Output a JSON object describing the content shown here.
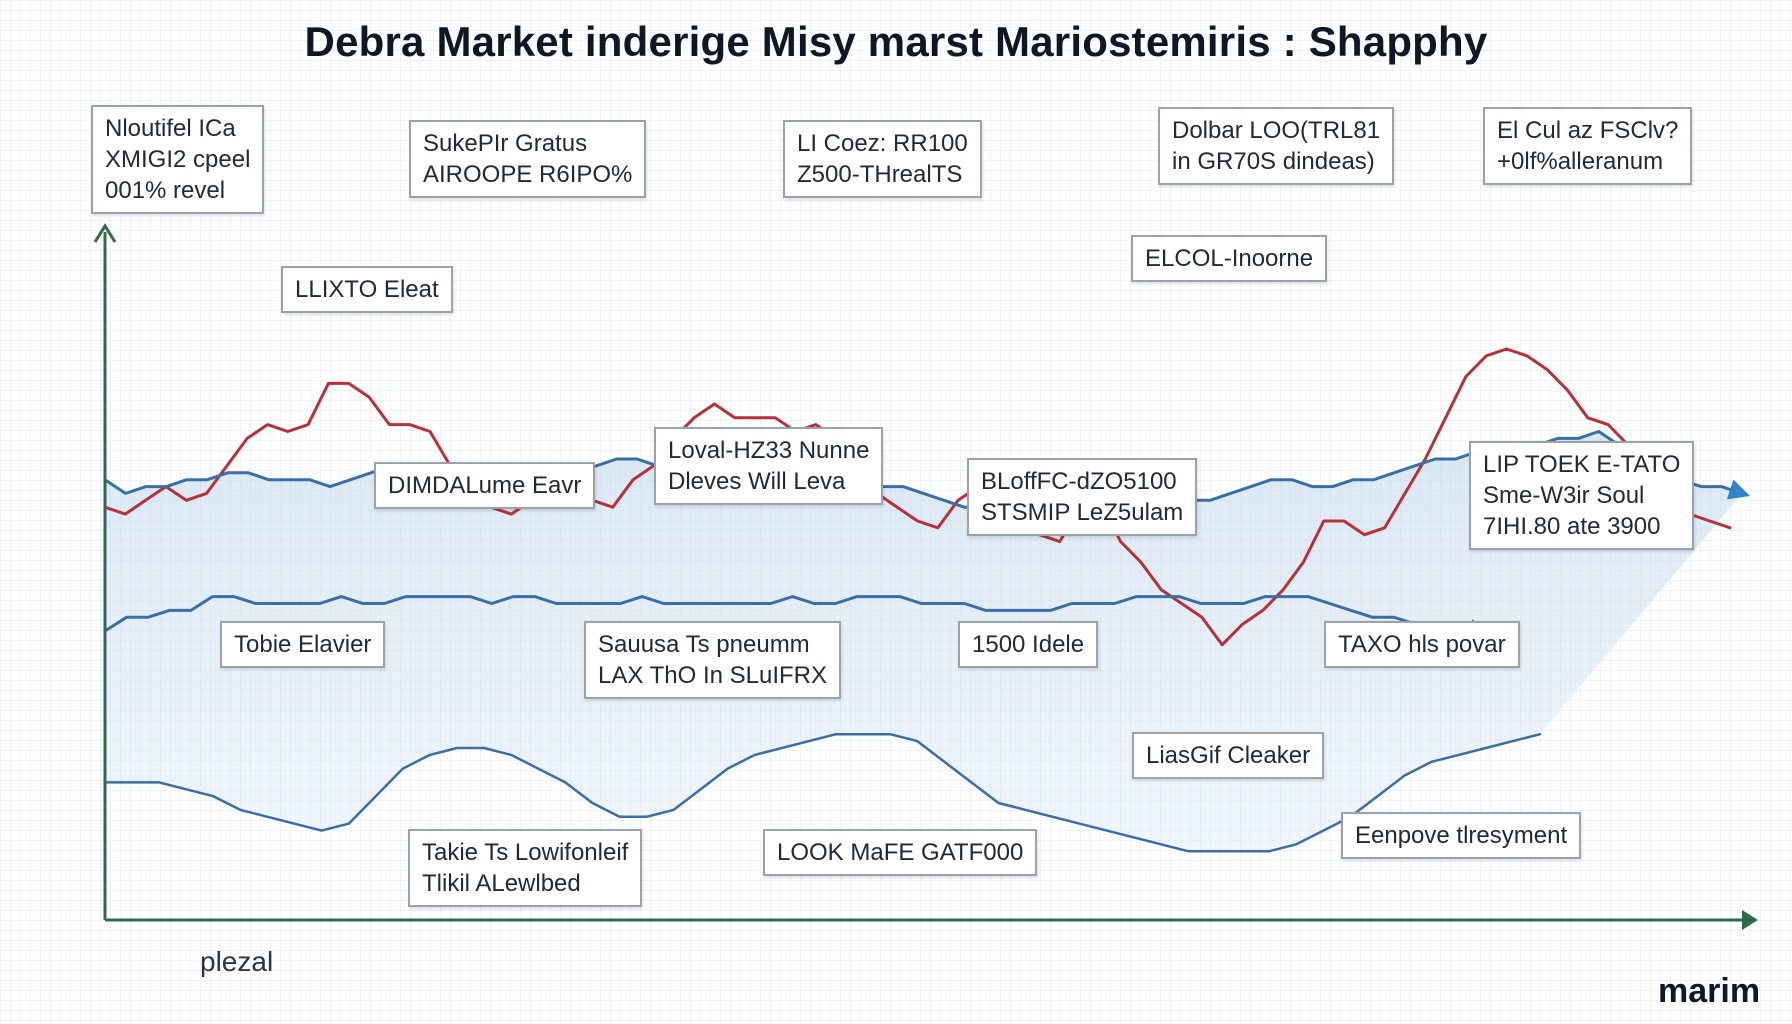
{
  "chart_data": {
    "type": "line",
    "title": "Debra Market inderige Misy marst Mariostemiris : Shapphy",
    "xlabel": "plezal",
    "ylabel": "",
    "grid": true,
    "series": [
      {
        "color": "#b8313a",
        "values": [
          60,
          59,
          61,
          63,
          61,
          62,
          66,
          70,
          72,
          71,
          72,
          78,
          78,
          76,
          72,
          72,
          71,
          66,
          63,
          60,
          59,
          61,
          60,
          62,
          61,
          60,
          64,
          66,
          70,
          73,
          75,
          73,
          73,
          73,
          71,
          72,
          70,
          66,
          62,
          60,
          58,
          57,
          61,
          63,
          60,
          57,
          56,
          55,
          60,
          61,
          55,
          52,
          48,
          46,
          44,
          40,
          43,
          45,
          48,
          52,
          58,
          58,
          56,
          57,
          62,
          67,
          73,
          79,
          82,
          83,
          82,
          80,
          77,
          73,
          72,
          69,
          66,
          62,
          59,
          58,
          57
        ]
      },
      {
        "color": "#3a6ea8",
        "values": [
          64,
          62,
          63,
          63,
          64,
          64,
          65,
          65,
          64,
          64,
          64,
          63,
          64,
          65,
          66,
          66,
          65,
          64,
          64,
          65,
          65,
          64,
          64,
          65,
          66,
          67,
          67,
          66,
          66,
          65,
          66,
          66,
          65,
          66,
          64,
          63,
          63,
          63,
          63,
          63,
          62,
          61,
          60,
          60,
          60,
          60,
          61,
          61,
          61,
          61,
          61,
          61,
          62,
          61,
          61,
          62,
          63,
          64,
          64,
          63,
          63,
          64,
          64,
          65,
          66,
          67,
          67,
          68,
          68,
          69,
          69,
          70,
          70,
          71,
          69,
          67,
          65,
          64,
          63,
          63,
          62
        ]
      },
      {
        "color": "#3a6ea8",
        "values": [
          42,
          44,
          44,
          45,
          45,
          47,
          47,
          46,
          46,
          46,
          46,
          47,
          46,
          46,
          47,
          47,
          47,
          47,
          46,
          47,
          47,
          46,
          46,
          46,
          46,
          47,
          46,
          46,
          46,
          46,
          46,
          46,
          47,
          46,
          46,
          47,
          47,
          47,
          46,
          46,
          46,
          45,
          45,
          45,
          45,
          46,
          46,
          46,
          47,
          47,
          47,
          46,
          46,
          46,
          47,
          47,
          47,
          46,
          45,
          44,
          44,
          43,
          43,
          43,
          42
        ]
      },
      {
        "color": "#3a6ea8",
        "values": [
          20,
          20,
          20,
          19,
          18,
          16,
          15,
          14,
          13,
          14,
          18,
          22,
          24,
          25,
          25,
          24,
          22,
          20,
          17,
          15,
          15,
          16,
          19,
          22,
          24,
          25,
          26,
          27,
          27,
          27,
          26,
          23,
          20,
          17,
          16,
          15,
          14,
          13,
          12,
          11,
          10,
          10,
          10,
          10,
          11,
          13,
          15,
          18,
          21,
          23,
          24,
          25,
          26,
          27
        ]
      }
    ],
    "annotations": [
      "Nloutifel ICa\nXMIGI2 cpeel\n001% revel",
      "SukePIr Gratus\nAIROOPE R6IPO%",
      "LI Coez: RR100\nZ500-THrealTS",
      "Dolbar LOO(TRL81\nin GR70S dindeas)",
      "El Cul az FSClv?\n+0lf%alleranum",
      "LLIXTO Eleat",
      "ELCOL-Inoorne",
      "DIMDALume Eavr",
      "Loval-HZ33 Nunne\nDleves Will Leva",
      "BLoffFC-dZO5100\nSTSMIP LeZ5ulam",
      "LIP TOEK E-TATO\nSme-W3ir Soul\n7IHI.80 ate 3900",
      "Tobie Elavier",
      "Sauusa Ts pneumm\nLAX ThO In SLuIFRX",
      "1500 Idele",
      "TAXO hls povar",
      "LiasGif Cleaker",
      "Takie Ts Lowifonleif\nTlikil ALewlbed",
      "LOOK MaFE GATF000",
      "Eenpove tlresyment"
    ],
    "brand": "marim"
  }
}
